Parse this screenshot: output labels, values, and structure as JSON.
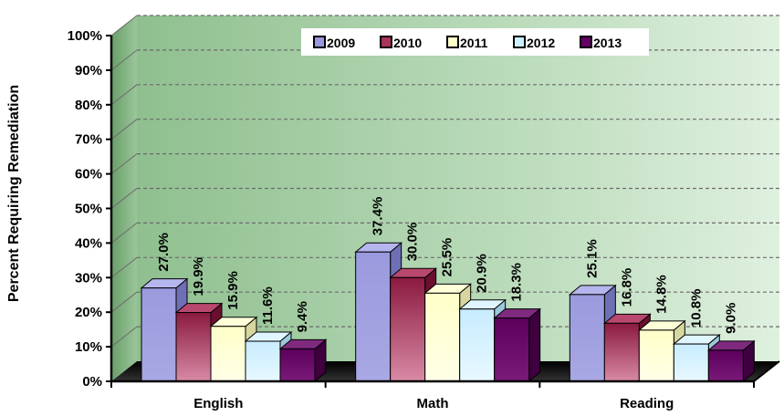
{
  "chart_data": {
    "type": "bar",
    "ylabel": "Percent Requiring Remediation",
    "xlabel": "",
    "ylim": [
      0,
      100
    ],
    "yticks": [
      "0%",
      "10%",
      "20%",
      "30%",
      "40%",
      "50%",
      "60%",
      "70%",
      "80%",
      "90%",
      "100%"
    ],
    "categories": [
      "English",
      "Math",
      "Reading"
    ],
    "series": [
      {
        "name": "2009",
        "values": [
          27.0,
          37.4,
          25.1
        ],
        "labels": [
          "27.0%",
          "37.4%",
          "25.1%"
        ],
        "color": "#9999dd"
      },
      {
        "name": "2010",
        "values": [
          19.9,
          30.0,
          16.8
        ],
        "labels": [
          "19.9%",
          "30.0%",
          "16.8%"
        ],
        "color": "#a8335c"
      },
      {
        "name": "2011",
        "values": [
          15.9,
          25.5,
          14.8
        ],
        "labels": [
          "15.9%",
          "25.5%",
          "14.8%"
        ],
        "color": "#ffffcc"
      },
      {
        "name": "2012",
        "values": [
          11.6,
          20.9,
          10.8
        ],
        "labels": [
          "11.6%",
          "20.9%",
          "10.8%"
        ],
        "color": "#ccf0ff"
      },
      {
        "name": "2013",
        "values": [
          9.4,
          18.3,
          9.0
        ],
        "labels": [
          "9.4%",
          "18.3%",
          "9.0%"
        ],
        "color": "#660066"
      }
    ],
    "grid": true,
    "legend_position": "top-center"
  }
}
